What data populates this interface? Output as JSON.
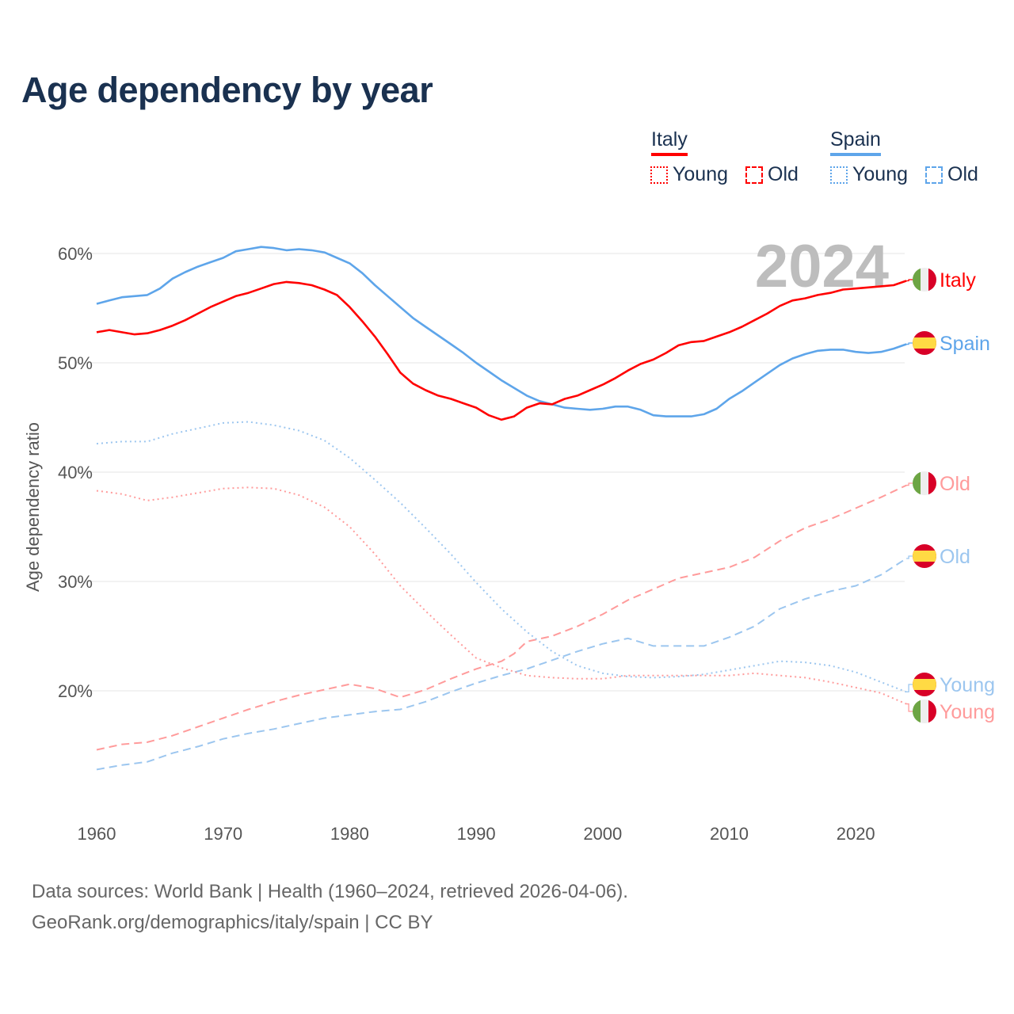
{
  "title": "Age dependency by year",
  "legend": {
    "italy": {
      "label": "Italy",
      "young": "Young",
      "old": "Old",
      "color": "#ff0000"
    },
    "spain": {
      "label": "Spain",
      "young": "Young",
      "old": "Old",
      "color": "#5ea5ea"
    }
  },
  "year_watermark": "2024",
  "end_labels": {
    "italy_total": "Italy",
    "spain_total": "Spain",
    "italy_old": "Old",
    "spain_old": "Old",
    "spain_young": "Young",
    "italy_young": "Young"
  },
  "footer": {
    "line1": "Data sources: World Bank | Health (1960–2024, retrieved 2026-04-06).",
    "line2": "GeoRank.org/demographics/italy/spain | CC BY"
  },
  "chart_data": {
    "type": "line",
    "title": "Age dependency by year",
    "xlabel": "",
    "ylabel": "Age dependency ratio",
    "xlim": [
      1960,
      2024
    ],
    "ylim": [
      10,
      62
    ],
    "xticks": [
      1960,
      1970,
      1980,
      1990,
      2000,
      2010,
      2020
    ],
    "yticks": [
      20,
      30,
      40,
      50,
      60
    ],
    "ytick_labels": [
      "20%",
      "30%",
      "40%",
      "50%",
      "60%"
    ],
    "grid": true,
    "legend_position": "top-right",
    "series": [
      {
        "name": "Italy",
        "key": "italy_total",
        "color": "#ff0000",
        "style": "solid",
        "x": [
          1960,
          1961,
          1962,
          1963,
          1964,
          1965,
          1966,
          1967,
          1968,
          1969,
          1970,
          1971,
          1972,
          1973,
          1974,
          1975,
          1976,
          1977,
          1978,
          1979,
          1980,
          1981,
          1982,
          1983,
          1984,
          1985,
          1986,
          1987,
          1988,
          1989,
          1990,
          1991,
          1992,
          1993,
          1994,
          1995,
          1996,
          1997,
          1998,
          1999,
          2000,
          2001,
          2002,
          2003,
          2004,
          2005,
          2006,
          2007,
          2008,
          2009,
          2010,
          2011,
          2012,
          2013,
          2014,
          2015,
          2016,
          2017,
          2018,
          2019,
          2020,
          2021,
          2022,
          2023,
          2024
        ],
        "values": [
          52.8,
          53.0,
          52.8,
          52.6,
          52.7,
          53.0,
          53.4,
          53.9,
          54.5,
          55.1,
          55.6,
          56.1,
          56.4,
          56.8,
          57.2,
          57.4,
          57.3,
          57.1,
          56.7,
          56.2,
          55.1,
          53.8,
          52.4,
          50.8,
          49.1,
          48.1,
          47.5,
          47.0,
          46.7,
          46.3,
          45.9,
          45.2,
          44.8,
          45.1,
          45.9,
          46.3,
          46.2,
          46.7,
          47.0,
          47.5,
          48.0,
          48.6,
          49.3,
          49.9,
          50.3,
          50.9,
          51.6,
          51.9,
          52.0,
          52.4,
          52.8,
          53.3,
          53.9,
          54.5,
          55.2,
          55.7,
          55.9,
          56.2,
          56.4,
          56.7,
          56.8,
          56.9,
          57.0,
          57.1,
          57.5
        ]
      },
      {
        "name": "Spain",
        "key": "spain_total",
        "color": "#5ea5ea",
        "style": "solid",
        "x": [
          1960,
          1961,
          1962,
          1963,
          1964,
          1965,
          1966,
          1967,
          1968,
          1969,
          1970,
          1971,
          1972,
          1973,
          1974,
          1975,
          1976,
          1977,
          1978,
          1979,
          1980,
          1981,
          1982,
          1983,
          1984,
          1985,
          1986,
          1987,
          1988,
          1989,
          1990,
          1991,
          1992,
          1993,
          1994,
          1995,
          1996,
          1997,
          1998,
          1999,
          2000,
          2001,
          2002,
          2003,
          2004,
          2005,
          2006,
          2007,
          2008,
          2009,
          2010,
          2011,
          2012,
          2013,
          2014,
          2015,
          2016,
          2017,
          2018,
          2019,
          2020,
          2021,
          2022,
          2023,
          2024
        ],
        "values": [
          55.4,
          55.7,
          56.0,
          56.1,
          56.2,
          56.8,
          57.7,
          58.3,
          58.8,
          59.2,
          59.6,
          60.2,
          60.4,
          60.6,
          60.5,
          60.3,
          60.4,
          60.3,
          60.1,
          59.6,
          59.1,
          58.2,
          57.1,
          56.1,
          55.1,
          54.1,
          53.3,
          52.5,
          51.7,
          50.9,
          50.0,
          49.2,
          48.4,
          47.7,
          47.0,
          46.5,
          46.2,
          45.9,
          45.8,
          45.7,
          45.8,
          46.0,
          46.0,
          45.7,
          45.2,
          45.1,
          45.1,
          45.1,
          45.3,
          45.8,
          46.7,
          47.4,
          48.2,
          49.0,
          49.8,
          50.4,
          50.8,
          51.1,
          51.2,
          51.2,
          51.0,
          50.9,
          51.0,
          51.3,
          51.7
        ]
      },
      {
        "name": "Spain Young",
        "key": "spain_young",
        "color": "#9cc6ef",
        "style": "dotted",
        "x": [
          1960,
          1962,
          1964,
          1966,
          1968,
          1970,
          1972,
          1974,
          1976,
          1978,
          1980,
          1982,
          1984,
          1986,
          1988,
          1990,
          1992,
          1994,
          1996,
          1998,
          2000,
          2002,
          2004,
          2006,
          2008,
          2010,
          2012,
          2014,
          2016,
          2018,
          2020,
          2022,
          2024
        ],
        "values": [
          42.6,
          42.8,
          42.8,
          43.5,
          44.0,
          44.5,
          44.6,
          44.3,
          43.8,
          42.9,
          41.3,
          39.3,
          37.2,
          34.9,
          32.5,
          29.9,
          27.5,
          25.4,
          23.6,
          22.3,
          21.6,
          21.3,
          21.2,
          21.3,
          21.5,
          21.9,
          22.3,
          22.7,
          22.6,
          22.3,
          21.7,
          20.8,
          19.9
        ]
      },
      {
        "name": "Italy Young",
        "key": "italy_young",
        "color": "#ff9b9b",
        "style": "dotted",
        "x": [
          1960,
          1962,
          1964,
          1966,
          1968,
          1970,
          1972,
          1974,
          1976,
          1978,
          1980,
          1982,
          1984,
          1986,
          1988,
          1990,
          1992,
          1994,
          1996,
          1998,
          2000,
          2002,
          2004,
          2006,
          2008,
          2010,
          2012,
          2014,
          2016,
          2018,
          2020,
          2022,
          2024
        ],
        "values": [
          38.3,
          38.0,
          37.4,
          37.7,
          38.1,
          38.5,
          38.6,
          38.5,
          37.9,
          36.8,
          35.0,
          32.5,
          29.6,
          27.3,
          25.1,
          23.0,
          22.1,
          21.4,
          21.2,
          21.1,
          21.1,
          21.4,
          21.4,
          21.4,
          21.4,
          21.4,
          21.6,
          21.4,
          21.2,
          20.8,
          20.3,
          19.8,
          18.8
        ]
      },
      {
        "name": "Italy Old",
        "key": "italy_old",
        "color": "#ff9b9b",
        "style": "dashed",
        "x": [
          1960,
          1962,
          1964,
          1966,
          1968,
          1970,
          1972,
          1974,
          1976,
          1978,
          1980,
          1982,
          1984,
          1986,
          1988,
          1990,
          1992,
          1993,
          1994,
          1996,
          1998,
          2000,
          2002,
          2004,
          2006,
          2008,
          2010,
          2012,
          2014,
          2016,
          2018,
          2020,
          2022,
          2024
        ],
        "values": [
          14.6,
          15.1,
          15.3,
          15.9,
          16.7,
          17.5,
          18.3,
          19.0,
          19.6,
          20.1,
          20.6,
          20.2,
          19.4,
          20.1,
          21.1,
          22.0,
          22.7,
          23.4,
          24.5,
          25.0,
          25.9,
          27.0,
          28.3,
          29.3,
          30.3,
          30.8,
          31.3,
          32.2,
          33.7,
          34.9,
          35.7,
          36.7,
          37.7,
          38.8
        ]
      },
      {
        "name": "Spain Old",
        "key": "spain_old",
        "color": "#9cc6ef",
        "style": "dashed",
        "x": [
          1960,
          1962,
          1964,
          1966,
          1968,
          1970,
          1972,
          1974,
          1976,
          1978,
          1980,
          1982,
          1984,
          1986,
          1988,
          1990,
          1992,
          1994,
          1996,
          1998,
          2000,
          2002,
          2004,
          2006,
          2008,
          2010,
          2012,
          2014,
          2016,
          2018,
          2020,
          2022,
          2024
        ],
        "values": [
          12.8,
          13.2,
          13.5,
          14.3,
          14.9,
          15.6,
          16.1,
          16.5,
          17.0,
          17.5,
          17.8,
          18.1,
          18.3,
          19.0,
          19.9,
          20.7,
          21.4,
          22.0,
          22.8,
          23.6,
          24.3,
          24.8,
          24.1,
          24.1,
          24.1,
          24.9,
          25.9,
          27.5,
          28.4,
          29.1,
          29.6,
          30.6,
          32.1
        ]
      }
    ]
  }
}
